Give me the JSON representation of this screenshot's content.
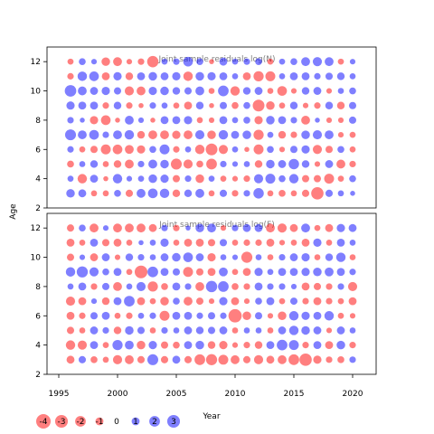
{
  "chart_data": [
    {
      "type": "scatter",
      "title": "Joint sample residuals log(N)",
      "xlabel": "Year",
      "ylabel": "Age",
      "xlim": [
        1994,
        2022
      ],
      "ylim": [
        2,
        13
      ],
      "x_ticks": [
        1995,
        2000,
        2005,
        2010,
        2015,
        2020
      ],
      "y_ticks": [
        2,
        4,
        6,
        8,
        10,
        12
      ],
      "years": [
        1996,
        1997,
        1998,
        1999,
        2000,
        2001,
        2002,
        2003,
        2004,
        2005,
        2006,
        2007,
        2008,
        2009,
        2010,
        2011,
        2012,
        2013,
        2014,
        2015,
        2016,
        2017,
        2018,
        2019,
        2020
      ],
      "ages": [
        3,
        4,
        5,
        6,
        7,
        8,
        9,
        10,
        11,
        12
      ],
      "residuals": [
        [
          1.2,
          1.0,
          -0.5,
          -0.5,
          0.7,
          -0.8,
          1.3,
          1.6,
          1.5,
          -0.9,
          0.9,
          1.3,
          -0.5,
          0.8,
          -0.6,
          0.6,
          1.9,
          -0.5,
          -0.7,
          -0.5,
          -0.8,
          -2.8,
          0.8,
          0.5,
          0.3
        ],
        [
          0.5,
          -1.5,
          1.0,
          -0.3,
          1.5,
          0.4,
          0.5,
          1.2,
          1.1,
          -0.8,
          0.6,
          -1.2,
          0.5,
          -0.5,
          -0.4,
          -0.6,
          1.4,
          1.7,
          0.7,
          1.5,
          -0.8,
          -0.8,
          -1.7,
          -0.5,
          0.7
        ],
        [
          -0.7,
          0.5,
          0.9,
          -0.5,
          -0.9,
          -1.3,
          0.6,
          1.3,
          1.2,
          -2.1,
          -1.4,
          -0.7,
          -2.0,
          0.6,
          0.4,
          0.5,
          -0.9,
          1.2,
          1.0,
          1.9,
          0.9,
          -0.4,
          1.0,
          -1.3,
          -0.6
        ],
        [
          0.6,
          -0.5,
          -0.8,
          -1.7,
          -1.6,
          -1.3,
          -1.1,
          0.7,
          1.7,
          -0.6,
          0.5,
          -1.5,
          -2.5,
          -1.4,
          0.5,
          -0.3,
          -1.7,
          0.7,
          -0.4,
          0.8,
          1.1,
          -1.4,
          -0.8,
          0.7,
          -0.5
        ],
        [
          2.1,
          1.3,
          1.6,
          0.6,
          1.3,
          1.5,
          -0.9,
          -1.3,
          -1.3,
          -1.1,
          -1.3,
          1.4,
          -1.2,
          1.5,
          1.0,
          1.2,
          -1.8,
          0.5,
          -0.9,
          -0.6,
          1.2,
          1.4,
          1.3,
          -0.4,
          -0.5
        ],
        [
          0.6,
          0.3,
          -1.1,
          -1.6,
          -0.3,
          1.3,
          0.4,
          -0.3,
          1.0,
          1.0,
          1.1,
          -0.5,
          -0.4,
          1.0,
          0.5,
          0.7,
          -1.1,
          1.2,
          1.0,
          0.6,
          -1.3,
          0.3,
          -0.4,
          -0.4,
          0.8
        ],
        [
          1.1,
          1.0,
          1.0,
          -0.6,
          0.9,
          -0.6,
          -0.3,
          0.6,
          0.5,
          -0.5,
          -1.0,
          0.9,
          -0.3,
          0.8,
          -0.7,
          0.7,
          -2.5,
          -1.2,
          -0.5,
          0.9,
          -0.4,
          -0.6,
          0.9,
          -0.9,
          0.8
        ],
        [
          2.4,
          1.3,
          1.0,
          1.1,
          0.8,
          -1.4,
          -1.3,
          1.1,
          1.2,
          0.9,
          0.8,
          1.3,
          -0.5,
          2.0,
          -1.5,
          0.9,
          1.0,
          -0.5,
          -1.6,
          -0.4,
          0.9,
          1.0,
          -0.4,
          0.5,
          0.7
        ],
        [
          -0.6,
          1.5,
          1.6,
          -1.0,
          1.1,
          -0.9,
          1.0,
          1.2,
          1.0,
          1.1,
          -1.5,
          1.2,
          1.1,
          1.0,
          0.5,
          -1.0,
          -1.8,
          -1.7,
          0.5,
          1.0,
          1.0,
          0.6,
          0.8,
          0.9,
          0.5
        ],
        [
          -0.5,
          0.7,
          0.4,
          -1.2,
          -1.3,
          -0.4,
          -0.6,
          -2.3,
          0.5,
          0.6,
          1.6,
          0.7,
          -0.3,
          1.0,
          0.5,
          0.6,
          0.7,
          -0.5,
          0.5,
          0.7,
          1.3,
          1.4,
          1.3,
          -0.5,
          0.4
        ]
      ]
    },
    {
      "type": "scatter",
      "title": "Joint sample residuals log(F)",
      "xlabel": "Year",
      "ylabel": "Age",
      "xlim": [
        1994,
        2022
      ],
      "ylim": [
        2,
        13
      ],
      "x_ticks": [
        1995,
        2000,
        2005,
        2010,
        2015,
        2020
      ],
      "y_ticks": [
        2,
        4,
        6,
        8,
        10,
        12
      ],
      "years": [
        1996,
        1997,
        1998,
        1999,
        2000,
        2001,
        2002,
        2003,
        2004,
        2005,
        2006,
        2007,
        2008,
        2009,
        2010,
        2011,
        2012,
        2013,
        2014,
        2015,
        2016,
        2017,
        2018,
        2019,
        2020
      ],
      "ages": [
        3,
        4,
        5,
        6,
        7,
        8,
        9,
        10,
        11,
        12
      ],
      "residuals": [
        [
          -1.0,
          0.8,
          -0.7,
          -0.5,
          -1.4,
          -1.3,
          -0.8,
          2.1,
          -0.8,
          1.0,
          -0.8,
          -2.0,
          -2.2,
          -1.7,
          -1.3,
          -0.8,
          -1.4,
          -1.0,
          -1.3,
          -2.0,
          -2.8,
          -1.1,
          -0.6,
          -0.7,
          0.6
        ],
        [
          -1.5,
          -1.4,
          1.0,
          -0.5,
          1.8,
          1.3,
          -1.2,
          1.1,
          -0.8,
          -0.7,
          1.0,
          1.2,
          -0.9,
          -1.1,
          -0.4,
          -0.6,
          -0.9,
          1.0,
          2.0,
          1.7,
          -0.6,
          1.0,
          -1.0,
          1.2,
          -0.6
        ],
        [
          -0.8,
          -0.5,
          1.0,
          0.6,
          -0.9,
          1.2,
          0.8,
          -0.5,
          0.6,
          0.5,
          1.0,
          0.9,
          0.8,
          1.0,
          -0.5,
          0.5,
          0.5,
          -0.5,
          1.0,
          1.5,
          1.2,
          1.0,
          -0.4,
          1.0,
          0.5
        ],
        [
          -1.0,
          -0.6,
          0.8,
          1.0,
          -0.5,
          -0.6,
          0.5,
          0.6,
          -1.7,
          1.0,
          1.0,
          0.6,
          0.8,
          0.6,
          -3.3,
          -1.2,
          0.8,
          -0.4,
          -1.2,
          1.5,
          1.1,
          1.0,
          1.5,
          -0.5,
          -0.4
        ],
        [
          -1.4,
          -1.0,
          0.4,
          -0.9,
          1.0,
          2.0,
          -1.0,
          -0.5,
          -1.2,
          0.7,
          -1.3,
          -0.8,
          -0.4,
          1.1,
          -1.0,
          -0.4,
          0.7,
          1.0,
          -0.5,
          0.8,
          -0.6,
          -1.0,
          -0.6,
          -0.5,
          -1.0
        ],
        [
          0.5,
          1.0,
          -0.6,
          0.8,
          -1.3,
          0.5,
          1.4,
          -1.8,
          -0.7,
          1.0,
          0.6,
          -1.3,
          2.3,
          2.0,
          -0.7,
          -0.6,
          1.0,
          0.6,
          0.6,
          0.4,
          -1.0,
          -0.8,
          -0.6,
          0.6,
          -1.4
        ],
        [
          1.5,
          2.2,
          1.4,
          0.7,
          1.0,
          -0.5,
          -3.0,
          2.0,
          1.0,
          0.8,
          -1.7,
          -0.8,
          -1.0,
          1.3,
          -0.5,
          -1.0,
          1.1,
          0.5,
          1.0,
          1.0,
          1.1,
          1.2,
          1.3,
          1.0,
          0.6
        ],
        [
          -0.8,
          0.4,
          -1.0,
          1.0,
          -0.4,
          0.9,
          0.6,
          0.5,
          1.0,
          1.2,
          1.6,
          1.0,
          -1.1,
          0.5,
          0.4,
          -2.2,
          0.5,
          -0.5,
          0.6,
          1.0,
          1.1,
          -0.5,
          0.9,
          1.5,
          -0.5
        ],
        [
          -1.0,
          -0.5,
          1.0,
          -0.8,
          -1.0,
          -0.5,
          0.3,
          0.5,
          1.1,
          -0.5,
          -1.0,
          -1.0,
          -0.8,
          0.8,
          -0.5,
          -0.6,
          -0.6,
          -1.0,
          -0.4,
          -0.5,
          -1.0,
          1.1,
          -0.5,
          1.0,
          0.5
        ],
        [
          -0.8,
          0.7,
          -1.3,
          0.4,
          -1.3,
          -1.3,
          -1.3,
          -1.0,
          0.6,
          -0.6,
          0.3,
          1.2,
          1.3,
          -0.4,
          0.6,
          1.0,
          1.0,
          -1.3,
          -1.4,
          -1.0,
          1.3,
          -0.5,
          -1.0,
          1.1,
          1.0
        ]
      ]
    }
  ],
  "legend": {
    "items": [
      {
        "label": "-4",
        "value": -4
      },
      {
        "label": "-3",
        "value": -3
      },
      {
        "label": "-2",
        "value": -2
      },
      {
        "label": "-1",
        "value": -1
      },
      {
        "label": "0",
        "value": 0
      },
      {
        "label": "1",
        "value": 1
      },
      {
        "label": "2",
        "value": 2
      },
      {
        "label": "3",
        "value": 3
      }
    ]
  },
  "colors": {
    "negative": "#ff0000",
    "positive": "#0000ff",
    "bubble_alpha": 0.5
  },
  "labels": {
    "x_axis": "Year",
    "y_axis": "Age"
  }
}
